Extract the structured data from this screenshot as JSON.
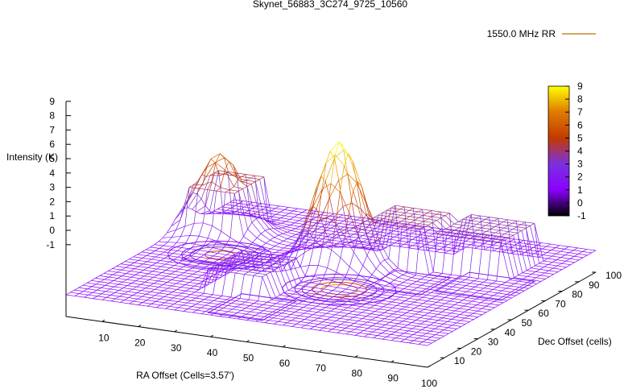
{
  "chart_data": {
    "type": "surface",
    "title": "Skynet_56883_3C274_9725_10560",
    "legend": {
      "label": "1550.0 MHz RR",
      "position": "top-right"
    },
    "xlabel": "RA Offset (Cells=3.57')",
    "ylabel": "Dec Offset (cells)",
    "zlabel": "Intensity (K)",
    "x_ticks": [
      "10",
      "20",
      "30",
      "40",
      "50",
      "60",
      "70",
      "80",
      "90",
      "100"
    ],
    "y_ticks": [
      "10",
      "20",
      "30",
      "40",
      "50",
      "60",
      "70",
      "80",
      "90",
      "100"
    ],
    "z_ticks": [
      "-1",
      "0",
      "1",
      "2",
      "3",
      "4",
      "5",
      "6",
      "7",
      "8",
      "9"
    ],
    "xlim": [
      0,
      100
    ],
    "ylim": [
      0,
      100
    ],
    "zlim": [
      -1,
      9
    ],
    "colorbar": {
      "ticks": [
        "-1",
        "0",
        "1",
        "2",
        "3",
        "4",
        "5",
        "6",
        "7",
        "8",
        "9"
      ],
      "range": [
        -1,
        9
      ],
      "colors": [
        "#000000",
        "#8a00ff",
        "#7a30e0",
        "#c23a00",
        "#e07a00",
        "#ffff00"
      ]
    },
    "base_level": 0.5,
    "peaks": [
      {
        "x": 50,
        "y": 55,
        "value": 9.2
      },
      {
        "x": 10,
        "y": 70,
        "value": 6.0
      }
    ],
    "plateaus": [
      {
        "x": [
          3,
          18
        ],
        "y": [
          62,
          80
        ],
        "value": 4.0
      },
      {
        "x": [
          55,
          70
        ],
        "y": [
          60,
          78
        ],
        "value": 3.5
      },
      {
        "x": [
          72,
          90
        ],
        "y": [
          65,
          85
        ],
        "value": 3.0
      },
      {
        "x": [
          30,
          45
        ],
        "y": [
          20,
          40
        ],
        "value": 2.0
      }
    ]
  },
  "colors": {
    "surface_mesh": "#8a2be2",
    "legend_line": "#c48a2a"
  }
}
